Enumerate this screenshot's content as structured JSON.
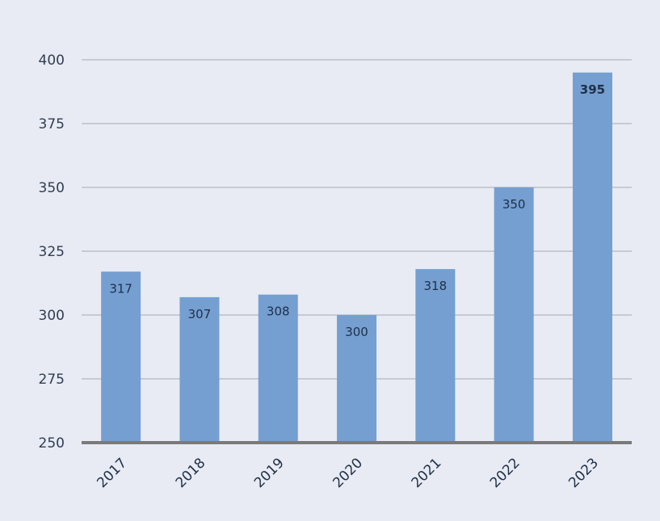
{
  "colors": {
    "background": "#e8ebf3",
    "bar": "#759fd1",
    "grid": "#a3a8b2",
    "axis": "#7a7a7a",
    "text": "#1f2f47"
  },
  "chart_data": {
    "type": "bar",
    "title": "",
    "xlabel": "",
    "ylabel": "",
    "categories": [
      "2017",
      "2018",
      "2019",
      "2020",
      "2021",
      "2022",
      "2023"
    ],
    "values": [
      317,
      307,
      308,
      300,
      318,
      350,
      395
    ],
    "value_labels": [
      "317",
      "307",
      "308",
      "300",
      "318",
      "350",
      "395"
    ],
    "emphasized_index": 6,
    "ylim": [
      250,
      400
    ],
    "yticks": [
      250,
      275,
      300,
      325,
      350,
      375,
      400
    ],
    "ytick_labels": [
      "250",
      "275",
      "300",
      "325",
      "350",
      "375",
      "400"
    ],
    "grid": true,
    "legend": "none"
  }
}
